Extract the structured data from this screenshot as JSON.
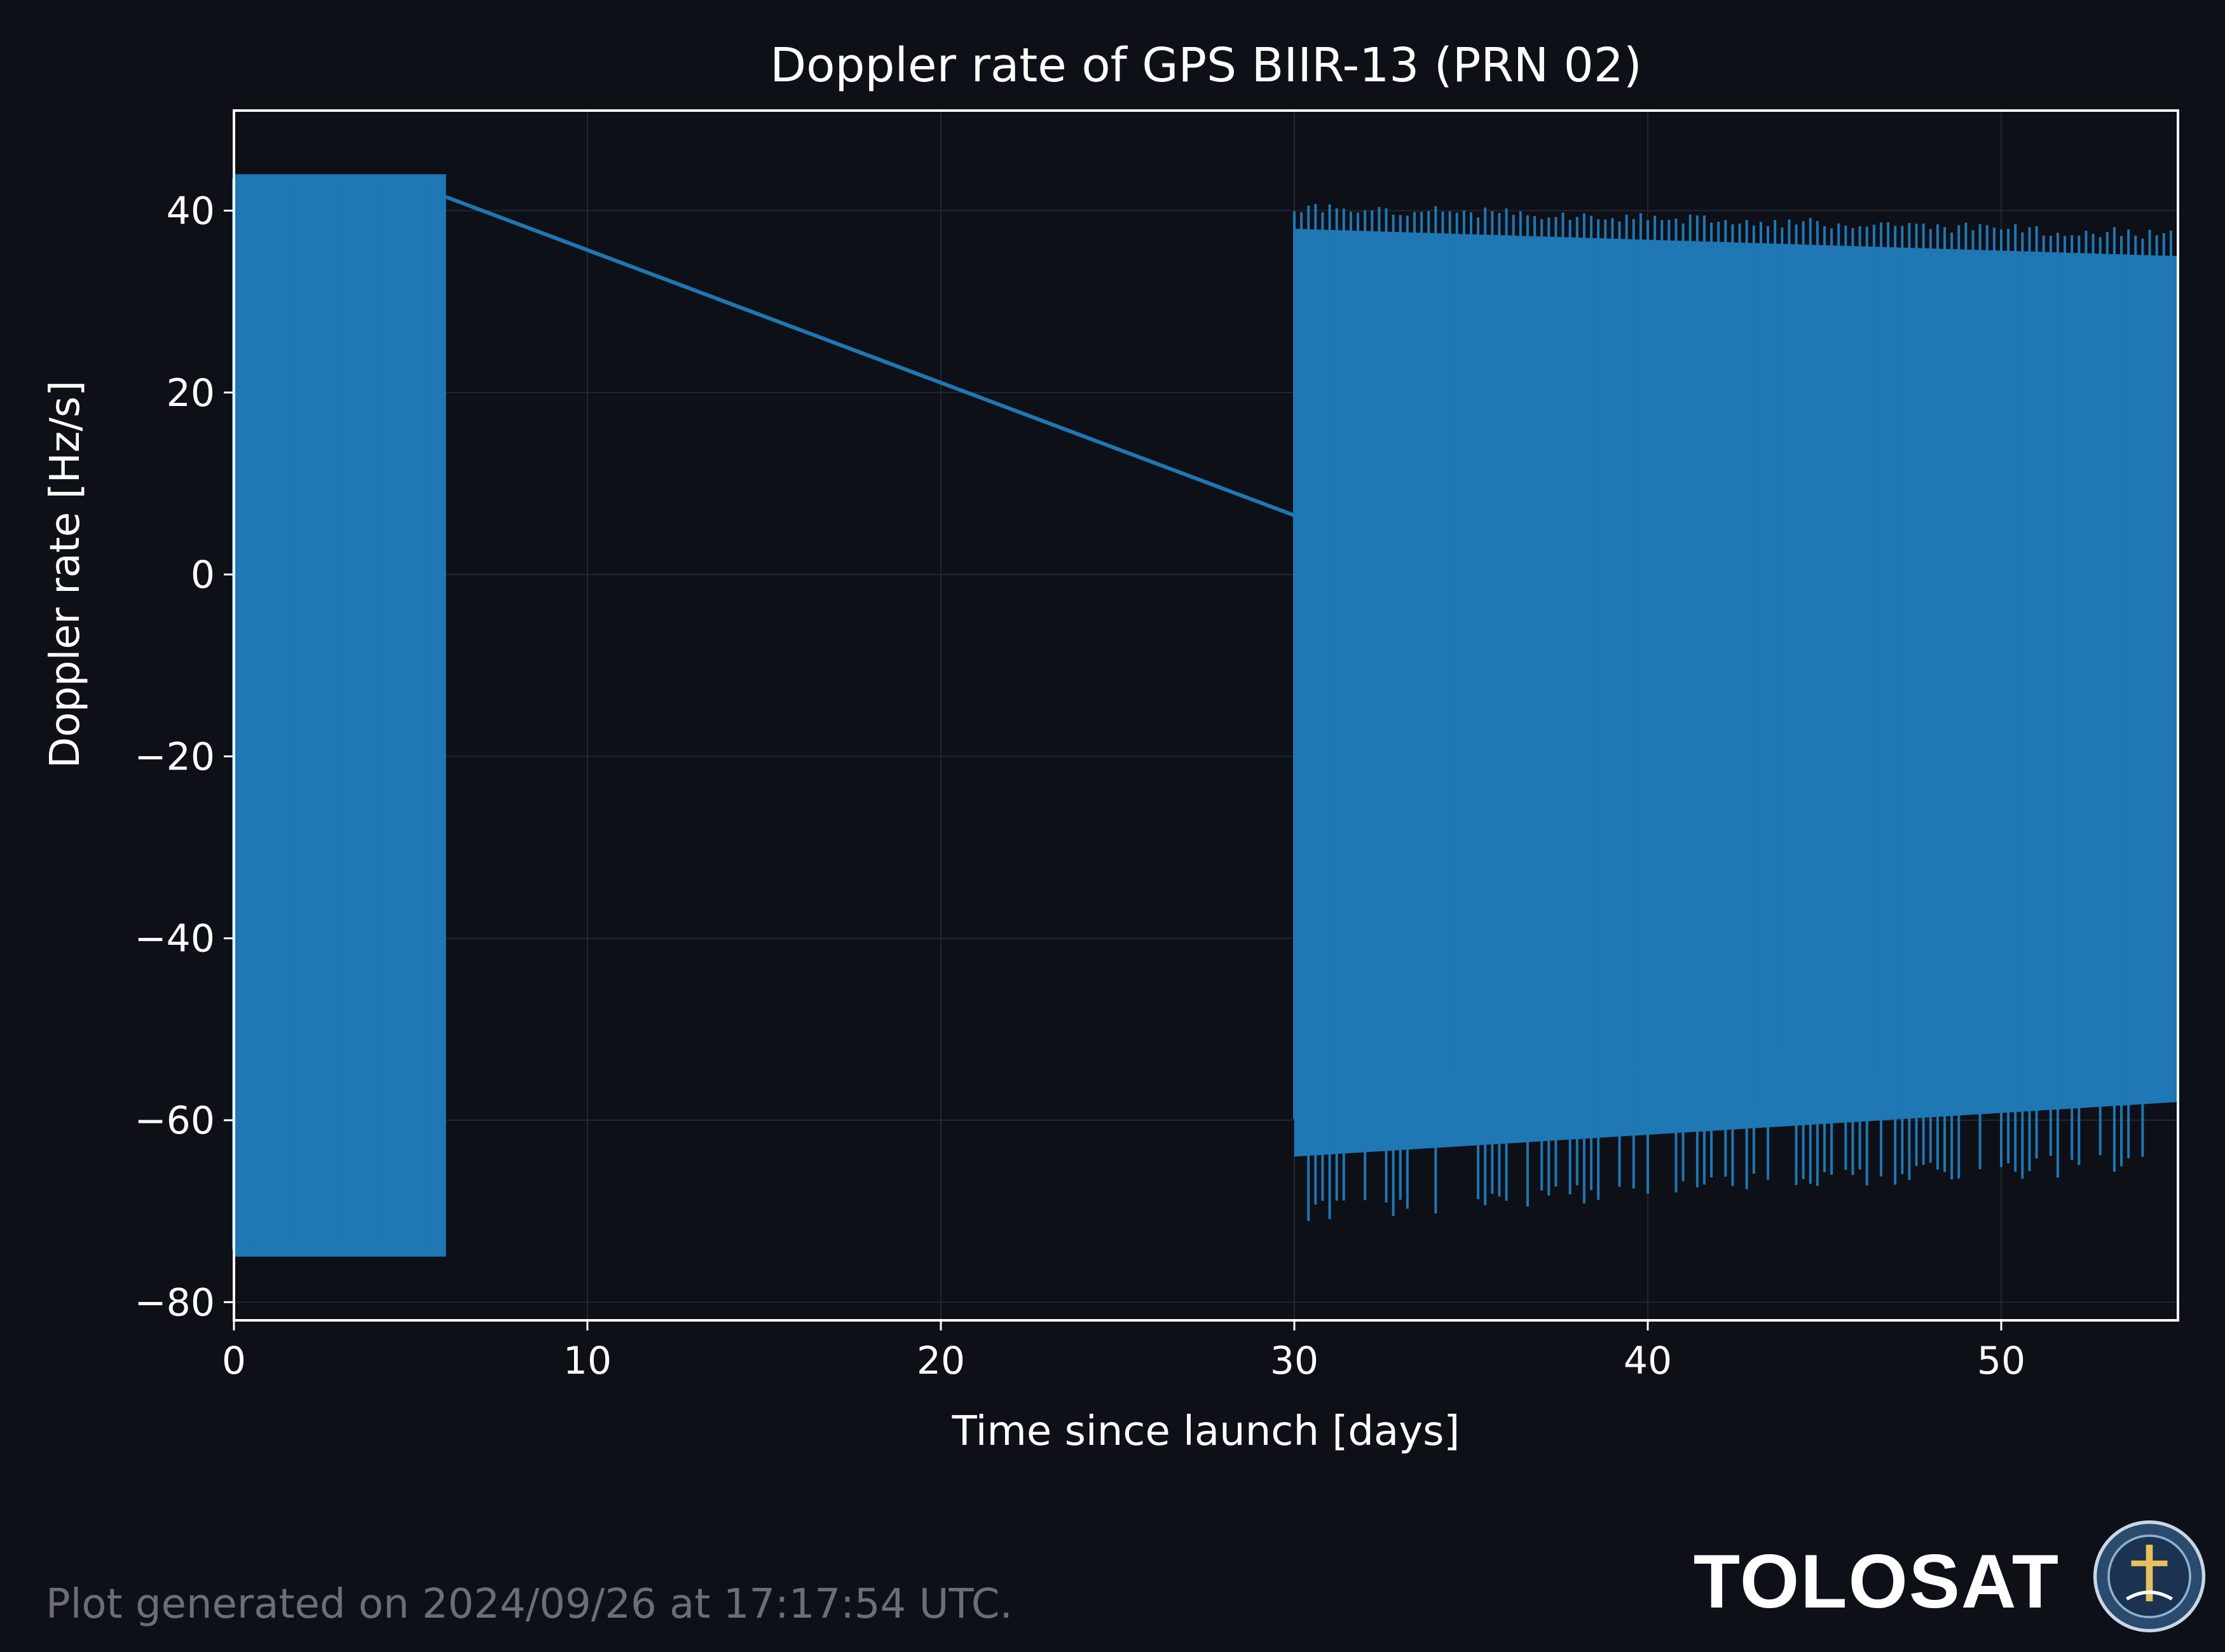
{
  "chart_data": {
    "type": "line",
    "title": "Doppler rate of GPS BIIR-13 (PRN 02)",
    "xlabel": "Time since launch [days]",
    "ylabel": "Doppler rate [Hz/s]",
    "xlim": [
      0,
      55
    ],
    "ylim": [
      -82,
      51
    ],
    "xticks": [
      0,
      10,
      20,
      30,
      40,
      50
    ],
    "yticks": [
      -80,
      -60,
      -40,
      -20,
      0,
      20,
      40
    ],
    "xtick_labels": [
      "0",
      "10",
      "20",
      "30",
      "40",
      "50"
    ],
    "ytick_labels": [
      "−80",
      "−60",
      "−40",
      "−20",
      "0",
      "20",
      "40"
    ],
    "grid": true,
    "series": [
      {
        "color": "#1f77b4",
        "segments": [
          {
            "x_start": 0.0,
            "x_end": 6.0,
            "y_max": 44,
            "y_min": -75
          },
          {
            "x_start": 30.0,
            "x_end": 55.0,
            "y_max_start": 41,
            "y_max_end": 38,
            "y_min_start": -70,
            "y_min_end": -64
          }
        ],
        "connecting_line": {
          "x": [
            6.0,
            30.0
          ],
          "y": [
            41.5,
            6.5
          ]
        }
      }
    ]
  },
  "colors": {
    "background": "#0d1017",
    "series": "#1f77b4",
    "axes": "#ffffff",
    "grid": "#22262e",
    "footer_text": "#6b6e73"
  },
  "footer": {
    "note": "Plot generated on 2024/09/26 at 17:17:54 UTC.",
    "brand": "TOLOSAT",
    "logo_icon": "tolosat-emblem-icon"
  }
}
